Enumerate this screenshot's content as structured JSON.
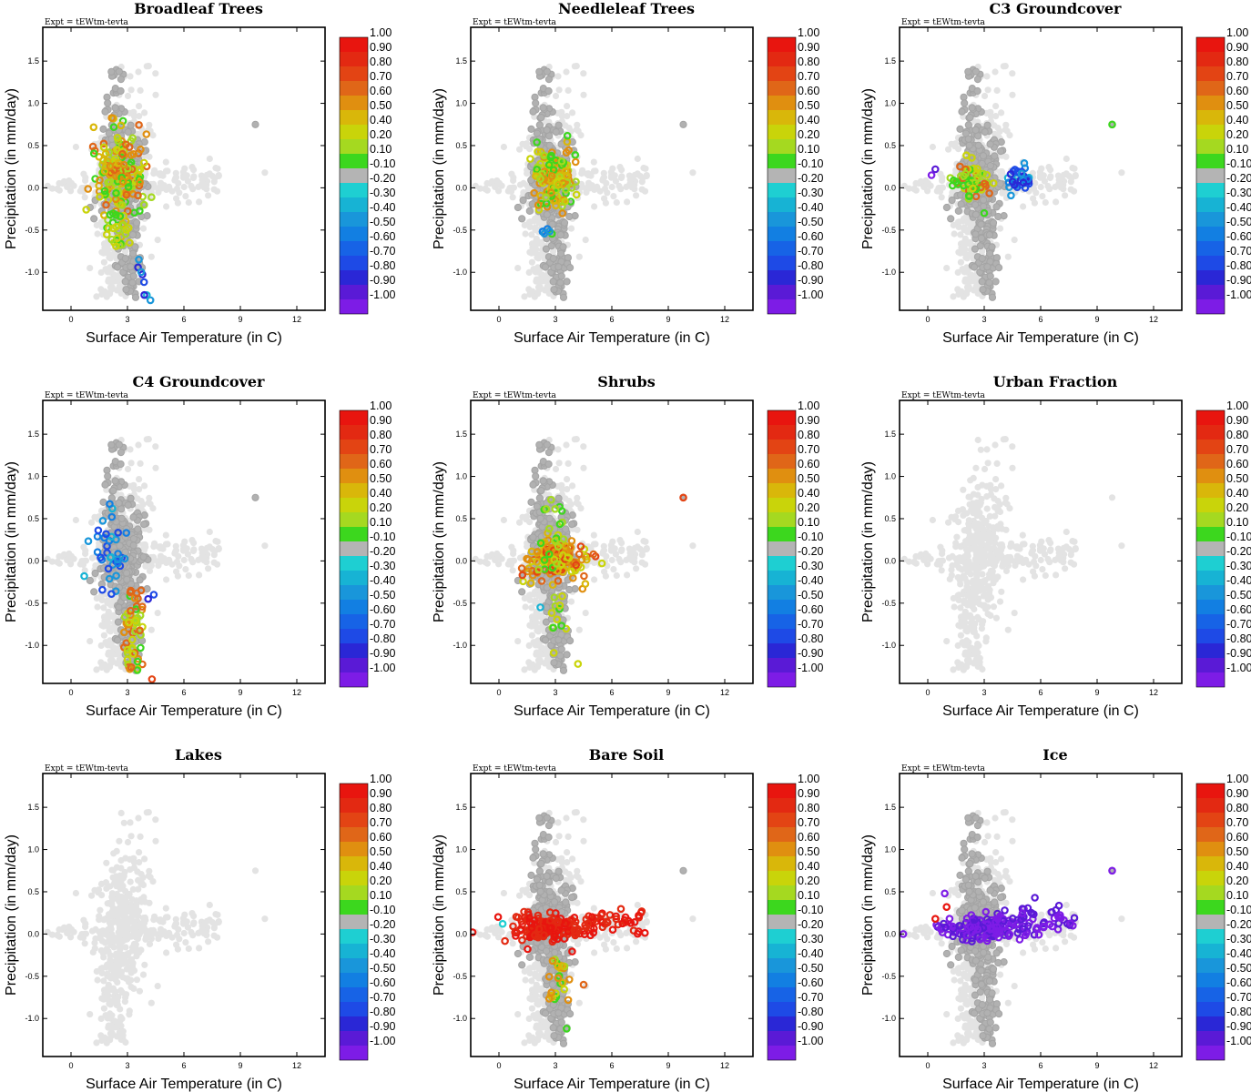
{
  "figure": {
    "expt_label": "Expt = tEWtm-tevta"
  },
  "colorbar": {
    "labels": [
      "1.00",
      "0.90",
      "0.80",
      "0.70",
      "0.60",
      "0.50",
      "0.40",
      "0.20",
      "0.10",
      "-0.10",
      "-0.20",
      "-0.30",
      "-0.40",
      "-0.50",
      "-0.60",
      "-0.70",
      "-0.80",
      "-0.90",
      "-1.00"
    ],
    "colors": [
      "#e8150f",
      "#e32912",
      "#e34414",
      "#e06618",
      "#e08f10",
      "#d9b70a",
      "#c9d40a",
      "#a5d920",
      "#3cd71e",
      "#b4b4b4",
      "#1ecfd2",
      "#17b3d4",
      "#1996da",
      "#127fe2",
      "#1763e6",
      "#1e4ae6",
      "#2a27d6",
      "#5a1ad6",
      "#7d1ce6"
    ]
  },
  "chart_data": [
    {
      "type": "scatter",
      "title": "Broadleaf Trees",
      "xlabel": "Surface Air Temperature (in C)",
      "ylabel": "Precipitation (in mm/day)",
      "xlim": [
        -1.5,
        13.5
      ],
      "ylim": [
        -1.45,
        1.9
      ],
      "xticks": [
        0,
        3,
        6,
        9,
        12
      ],
      "yticks": [
        -1.0,
        -0.5,
        0.0,
        0.5,
        1.0,
        1.5
      ],
      "highlight": "broadleaf"
    },
    {
      "type": "scatter",
      "title": "Needleleaf Trees",
      "xlabel": "Surface Air Temperature (in C)",
      "ylabel": "Precipitation (in mm/day)",
      "xlim": [
        -1.5,
        13.5
      ],
      "ylim": [
        -1.45,
        1.9
      ],
      "xticks": [
        0,
        3,
        6,
        9,
        12
      ],
      "yticks": [
        -1.0,
        -0.5,
        0.0,
        0.5,
        1.0,
        1.5
      ],
      "highlight": "needleleaf"
    },
    {
      "type": "scatter",
      "title": "C3 Groundcover",
      "xlabel": "Surface Air Temperature (in C)",
      "ylabel": "Precipitation (in mm/day)",
      "xlim": [
        -1.5,
        13.5
      ],
      "ylim": [
        -1.45,
        1.9
      ],
      "xticks": [
        0,
        3,
        6,
        9,
        12
      ],
      "yticks": [
        -1.0,
        -0.5,
        0.0,
        0.5,
        1.0,
        1.5
      ],
      "highlight": "c3"
    },
    {
      "type": "scatter",
      "title": "C4 Groundcover",
      "xlabel": "Surface Air Temperature (in C)",
      "ylabel": "Precipitation (in mm/day)",
      "xlim": [
        -1.5,
        13.5
      ],
      "ylim": [
        -1.45,
        1.9
      ],
      "xticks": [
        0,
        3,
        6,
        9,
        12
      ],
      "yticks": [
        -1.0,
        -0.5,
        0.0,
        0.5,
        1.0,
        1.5
      ],
      "highlight": "c4"
    },
    {
      "type": "scatter",
      "title": "Shrubs",
      "xlabel": "Surface Air Temperature (in C)",
      "ylabel": "Precipitation (in mm/day)",
      "xlim": [
        -1.5,
        13.5
      ],
      "ylim": [
        -1.45,
        1.9
      ],
      "xticks": [
        0,
        3,
        6,
        9,
        12
      ],
      "yticks": [
        -1.0,
        -0.5,
        0.0,
        0.5,
        1.0,
        1.5
      ],
      "highlight": "shrubs"
    },
    {
      "type": "scatter",
      "title": "Urban Fraction",
      "xlabel": "Surface Air Temperature (in C)",
      "ylabel": "Precipitation (in mm/day)",
      "xlim": [
        -1.5,
        13.5
      ],
      "ylim": [
        -1.45,
        1.9
      ],
      "xticks": [
        0,
        3,
        6,
        9,
        12
      ],
      "yticks": [
        -1.0,
        -0.5,
        0.0,
        0.5,
        1.0,
        1.5
      ],
      "highlight": "none"
    },
    {
      "type": "scatter",
      "title": "Lakes",
      "xlabel": "Surface Air Temperature (in C)",
      "ylabel": "Precipitation (in mm/day)",
      "xlim": [
        -1.5,
        13.5
      ],
      "ylim": [
        -1.45,
        1.9
      ],
      "xticks": [
        0,
        3,
        6,
        9,
        12
      ],
      "yticks": [
        -1.0,
        -0.5,
        0.0,
        0.5,
        1.0,
        1.5
      ],
      "highlight": "none"
    },
    {
      "type": "scatter",
      "title": "Bare Soil",
      "xlabel": "Surface Air Temperature (in C)",
      "ylabel": "Precipitation (in mm/day)",
      "xlim": [
        -1.5,
        13.5
      ],
      "ylim": [
        -1.45,
        1.9
      ],
      "xticks": [
        0,
        3,
        6,
        9,
        12
      ],
      "yticks": [
        -1.0,
        -0.5,
        0.0,
        0.5,
        1.0,
        1.5
      ],
      "highlight": "baresoil"
    },
    {
      "type": "scatter",
      "title": "Ice",
      "xlabel": "Surface Air Temperature (in C)",
      "ylabel": "Precipitation (in mm/day)",
      "xlim": [
        -1.5,
        13.5
      ],
      "ylim": [
        -1.45,
        1.9
      ],
      "xticks": [
        0,
        3,
        6,
        9,
        12
      ],
      "yticks": [
        -1.0,
        -0.5,
        0.0,
        0.5,
        1.0,
        1.5
      ],
      "highlight": "ice"
    }
  ]
}
